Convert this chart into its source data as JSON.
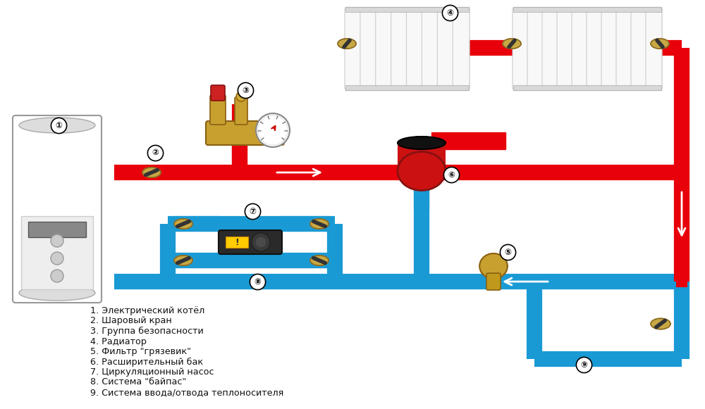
{
  "bg_color": "#ffffff",
  "pipe_red": "#e8000a",
  "pipe_blue": "#1a9ad4",
  "lw": 16,
  "legend_items": [
    "1. Электрический котёл",
    "2. Шаровый кран",
    "3. Группа безопасности",
    "4. Радиатор",
    "5. Фильтр \"грязевик\"",
    "6. Расширительный бак",
    "7. Циркуляционный насос",
    "8. Система \"байпас\"",
    "9. Система ввода/отвода теплоносителя"
  ]
}
